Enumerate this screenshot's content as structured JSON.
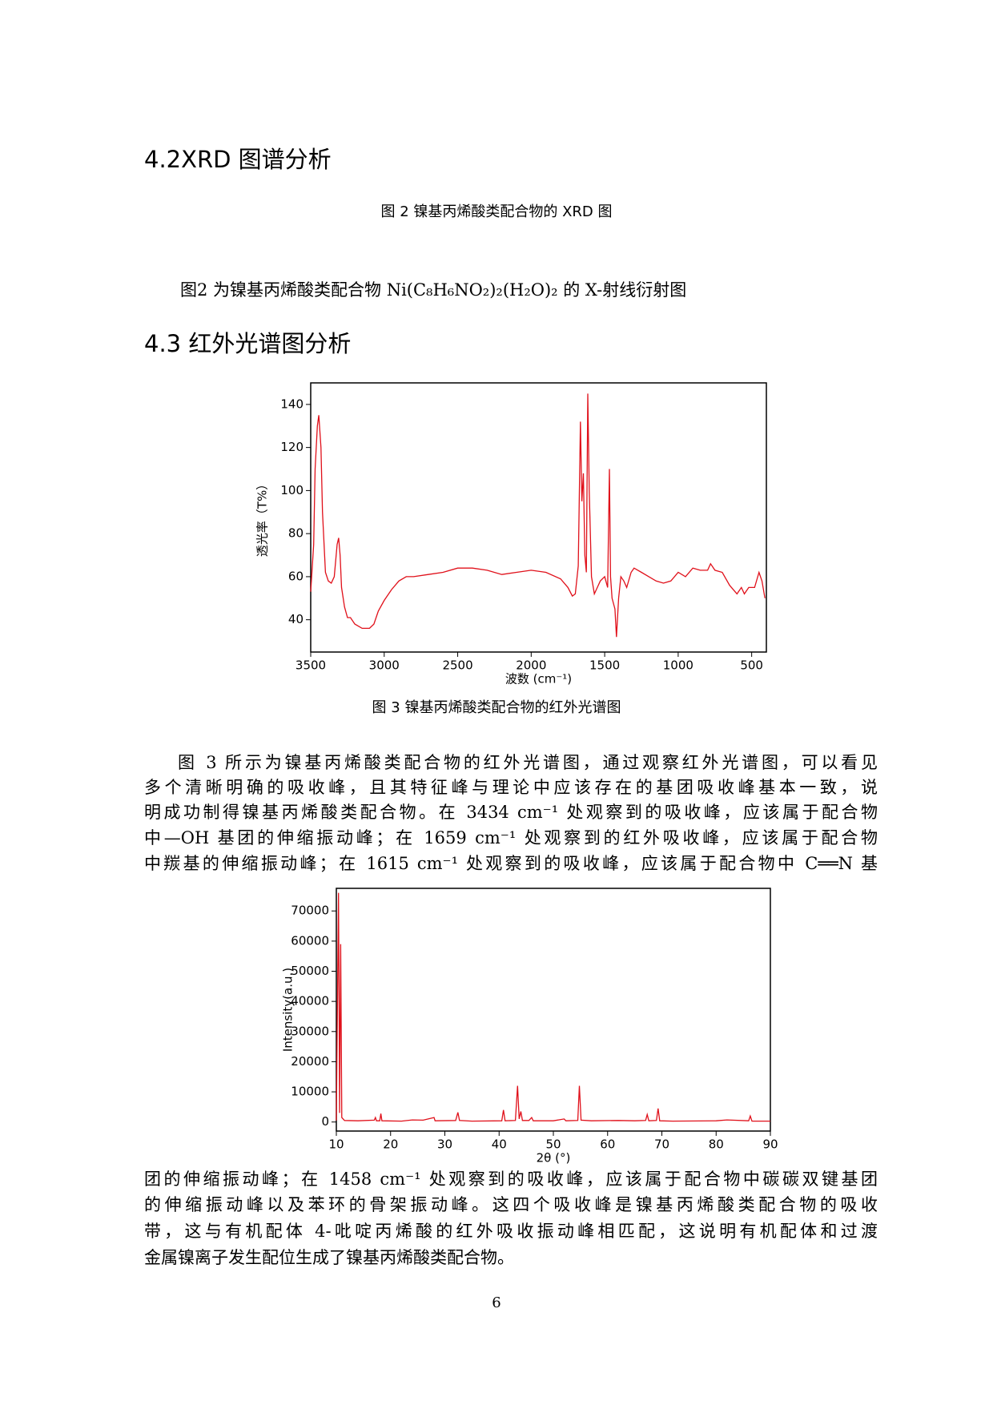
{
  "heading_xrd": "4.2XRD 图谱分析",
  "caption_xrd": "图 2 镍基丙烯酸类配合物的 XRD 图",
  "paragraph_xrd": "图2  为镍基丙烯酸类配合物 Ni(C₈H₆NO₂)₂(H₂O)₂ 的 X-射线衍射图",
  "heading_ir": "4.3 红外光谱图分析",
  "caption_ir": "图 3 镍基丙烯酸类配合物的红外光谱图",
  "paragraph_ir": {
    "lines": [
      "图 3 所示为镍基丙烯酸类配合物的红外光谱图，通过观察红外光谱图，可以看见",
      "多个清晰明确的吸收峰，且其特征峰与理论中应该存在的基团吸收峰基本一致，说",
      "明成功制得镍基丙烯酸类配合物。在 3434 cm⁻¹ 处观察到的吸收峰，应该属于配合物",
      "中—OH 基团的伸缩振动峰；在 1659 cm⁻¹ 处观察到的红外吸收峰，应该属于配合物",
      "中羰基的伸缩振动峰；在 1615 cm⁻¹ 处观察到的吸收峰，应该属于配合物中 C══N 基",
      "团的伸缩振动峰；在 1458 cm⁻¹ 处观察到的吸收峰，应该属于配合物中碳碳双键基团",
      "的伸缩振动峰以及苯环的骨架振动峰。这四个吸收峰是镍基丙烯酸类配合物的吸收",
      "带，这与有机配体 4-吡啶丙烯酸的红外吸收振动峰相匹配，这说明有机配体和过渡",
      "金属镍离子发生配位生成了镍基丙烯酸类配合物。"
    ]
  },
  "page_number": "6",
  "chart_data": [
    {
      "type": "line",
      "color": "#e0101a",
      "xlabel": "波数 (cm⁻¹)",
      "ylabel": "透光率（T%）",
      "xlim": [
        3500,
        400
      ],
      "ylim": [
        25,
        150
      ],
      "xticks": [
        3500,
        3000,
        2500,
        2000,
        1500,
        1000,
        500
      ],
      "yticks": [
        40,
        60,
        80,
        100,
        120,
        140
      ],
      "x": [
        3500,
        3480,
        3470,
        3455,
        3445,
        3430,
        3420,
        3400,
        3380,
        3360,
        3340,
        3320,
        3310,
        3300,
        3290,
        3270,
        3250,
        3230,
        3200,
        3150,
        3100,
        3070,
        3040,
        3000,
        2950,
        2900,
        2850,
        2800,
        2700,
        2600,
        2500,
        2400,
        2300,
        2200,
        2100,
        2000,
        1900,
        1800,
        1750,
        1720,
        1700,
        1680,
        1665,
        1655,
        1645,
        1635,
        1625,
        1615,
        1605,
        1590,
        1570,
        1550,
        1530,
        1500,
        1480,
        1468,
        1460,
        1450,
        1430,
        1420,
        1405,
        1390,
        1370,
        1350,
        1320,
        1300,
        1250,
        1200,
        1150,
        1100,
        1050,
        1000,
        950,
        900,
        850,
        800,
        780,
        750,
        700,
        650,
        600,
        570,
        550,
        520,
        480,
        450,
        430,
        410
      ],
      "values": [
        53,
        75,
        110,
        130,
        135,
        120,
        90,
        62,
        58,
        57,
        60,
        75,
        78,
        70,
        55,
        46,
        41,
        41,
        38,
        36,
        36,
        38,
        44,
        49,
        54,
        58,
        60,
        60,
        61,
        62,
        64,
        64,
        63,
        61,
        62,
        63,
        62,
        59,
        55,
        51,
        52,
        65,
        132,
        95,
        108,
        70,
        62,
        145,
        100,
        60,
        52,
        55,
        58,
        60,
        55,
        110,
        60,
        50,
        45,
        32,
        50,
        60,
        58,
        55,
        62,
        64,
        62,
        60,
        58,
        57,
        58,
        62,
        60,
        64,
        63,
        63,
        66,
        63,
        62,
        56,
        52,
        55,
        52,
        55,
        55,
        62,
        58,
        50
      ]
    },
    {
      "type": "line",
      "color": "#e0101a",
      "xlabel": "2θ (°)",
      "ylabel": "Intensity(a.u.)",
      "xlim": [
        10,
        90
      ],
      "ylim": [
        -3000,
        77500
      ],
      "xticks": [
        10,
        20,
        30,
        40,
        50,
        60,
        70,
        80,
        90
      ],
      "yticks": [
        0,
        10000,
        20000,
        30000,
        40000,
        50000,
        60000,
        70000
      ],
      "x": [
        10,
        10.4,
        10.6,
        10.8,
        11,
        11.5,
        14,
        17,
        17.2,
        17.4,
        18,
        18.2,
        18.4,
        22,
        24,
        26,
        28,
        28.2,
        32,
        32.4,
        32.7,
        35,
        40.5,
        40.8,
        41.1,
        43,
        43.4,
        43.7,
        44,
        44.3,
        45.5,
        46,
        46.3,
        50,
        52,
        52.3,
        54.5,
        54.8,
        55.1,
        57,
        62,
        65,
        67,
        67.3,
        67.6,
        69,
        69.3,
        69.6,
        72,
        80,
        82,
        86,
        86.3,
        86.6,
        90
      ],
      "values": [
        500,
        76000,
        3000,
        59000,
        1500,
        500,
        400,
        600,
        1500,
        400,
        400,
        2800,
        400,
        300,
        700,
        600,
        1500,
        400,
        500,
        3200,
        500,
        300,
        400,
        4000,
        400,
        500,
        12000,
        1000,
        3500,
        500,
        500,
        1500,
        400,
        400,
        1000,
        400,
        500,
        12000,
        600,
        400,
        500,
        400,
        500,
        2500,
        400,
        500,
        4500,
        400,
        300,
        400,
        700,
        400,
        2000,
        300,
        300
      ]
    }
  ]
}
